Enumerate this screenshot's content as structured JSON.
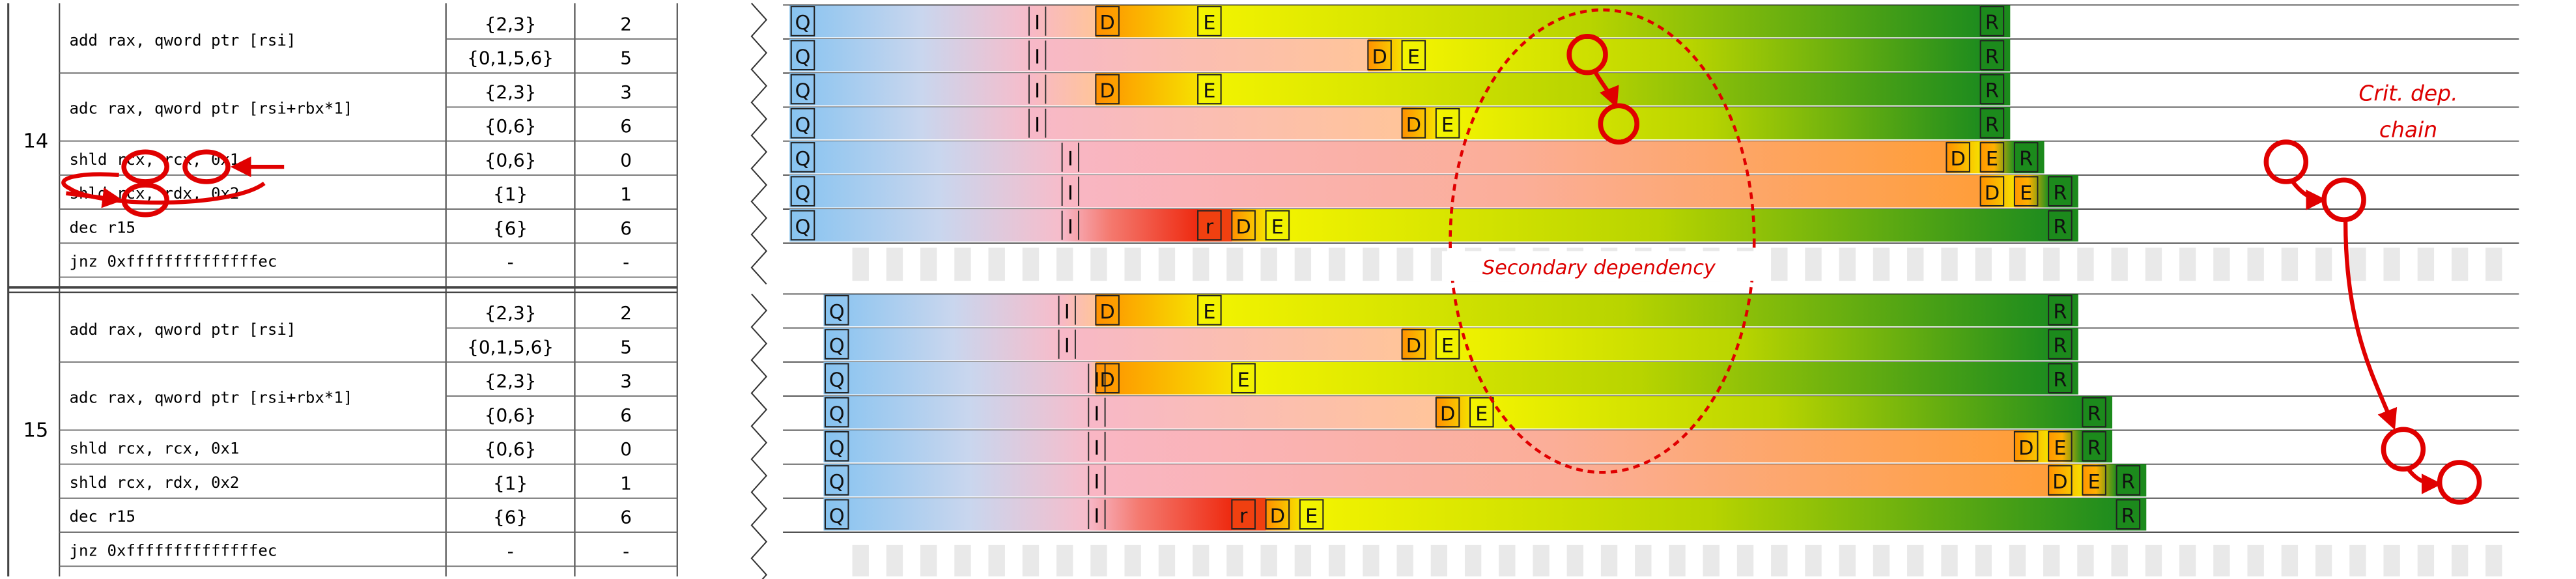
{
  "iterations": [
    {
      "number": "14",
      "rows": [
        {
          "instr": "add rax, qword ptr [rsi]",
          "ports": "{2,3}",
          "lat": "2"
        },
        {
          "instr": "",
          "ports": "{0,1,5,6}",
          "lat": "5"
        },
        {
          "instr": "adc rax, qword ptr [rsi+rbx*1]",
          "ports": "{2,3}",
          "lat": "3"
        },
        {
          "instr": "",
          "ports": "{0,6}",
          "lat": "6"
        },
        {
          "instr": "shld rcx, rcx, 0x1",
          "ports": "{0,6}",
          "lat": "0"
        },
        {
          "instr": "shld rcx, rdx, 0x2",
          "ports": "{1}",
          "lat": "1"
        },
        {
          "instr": "dec r15",
          "ports": "{6}",
          "lat": "6"
        },
        {
          "instr": "jnz 0xffffffffffffffec",
          "ports": "-",
          "lat": "-"
        }
      ]
    },
    {
      "number": "15",
      "rows": [
        {
          "instr": "add rax, qword ptr [rsi]",
          "ports": "{2,3}",
          "lat": "2"
        },
        {
          "instr": "",
          "ports": "{0,1,5,6}",
          "lat": "5"
        },
        {
          "instr": "adc rax, qword ptr [rsi+rbx*1]",
          "ports": "{2,3}",
          "lat": "3"
        },
        {
          "instr": "",
          "ports": "{0,6}",
          "lat": "6"
        },
        {
          "instr": "shld rcx, rcx, 0x1",
          "ports": "{0,6}",
          "lat": "0"
        },
        {
          "instr": "shld rcx, rdx, 0x2",
          "ports": "{1}",
          "lat": "1"
        },
        {
          "instr": "dec r15",
          "ports": "{6}",
          "lat": "6"
        },
        {
          "instr": "jnz 0xffffffffffffffec",
          "ports": "-",
          "lat": "-"
        }
      ]
    }
  ],
  "stage_letters": {
    "queue": "Q",
    "issue": "I",
    "dispatch": "D",
    "execute": "E",
    "retire": "R",
    "ready": "r"
  },
  "annotations": {
    "crit_line1": "Crit. dep.",
    "crit_line2": "chain",
    "secondary": "Secondary dependency"
  },
  "colors": {
    "queue": "#8cc4ee",
    "issue": "#f7b8c8",
    "dispatch": "#ff9a00",
    "execute": "#f0f000",
    "retire": "#1c8a1c",
    "highlight": "#ee0000",
    "annotation_text": "#dd0000"
  },
  "chart_data": {
    "type": "timeline",
    "cycle_markers": [
      {
        "iteration": "14",
        "row": 1,
        "Q": 0,
        "I": 6,
        "D": 9,
        "E": 12,
        "R": 35
      },
      {
        "iteration": "14",
        "row": 2,
        "Q": 0,
        "I": 6,
        "D": 17,
        "E": 18,
        "R": 35
      },
      {
        "iteration": "14",
        "row": 3,
        "Q": 0,
        "I": 6,
        "D": 9,
        "E": 12,
        "R": 35
      },
      {
        "iteration": "14",
        "row": 4,
        "Q": 0,
        "I": 6,
        "D": 18,
        "E": 19,
        "R": 35
      },
      {
        "iteration": "14",
        "row": 5,
        "Q": 0,
        "I": 6,
        "D": 34,
        "E": 35,
        "R": 36
      },
      {
        "iteration": "14",
        "row": 6,
        "Q": 0,
        "I": 6,
        "D": 35,
        "E": 36,
        "R": 37
      },
      {
        "iteration": "14",
        "row": 7,
        "Q": 0,
        "I": 6,
        "r": 12,
        "D": 13,
        "E": 14,
        "R": 37
      },
      {
        "iteration": "15",
        "row": 1,
        "Q": 1,
        "I": 6,
        "D": 9,
        "E": 12,
        "R": 37
      },
      {
        "iteration": "15",
        "row": 2,
        "Q": 1,
        "I": 6,
        "D": 18,
        "E": 19,
        "R": 37
      },
      {
        "iteration": "15",
        "row": 3,
        "Q": 1,
        "I": 7,
        "D": 9,
        "E": 13,
        "R": 37
      },
      {
        "iteration": "15",
        "row": 4,
        "Q": 1,
        "I": 7,
        "D": 19,
        "E": 20,
        "R": 38
      },
      {
        "iteration": "15",
        "row": 5,
        "Q": 1,
        "I": 7,
        "D": 36,
        "E": 37,
        "R": 38
      },
      {
        "iteration": "15",
        "row": 6,
        "Q": 1,
        "I": 7,
        "D": 37,
        "E": 38,
        "R": 39
      },
      {
        "iteration": "15",
        "row": 7,
        "Q": 1,
        "I": 7,
        "r": 13,
        "D": 14,
        "E": 15,
        "R": 39
      }
    ]
  }
}
